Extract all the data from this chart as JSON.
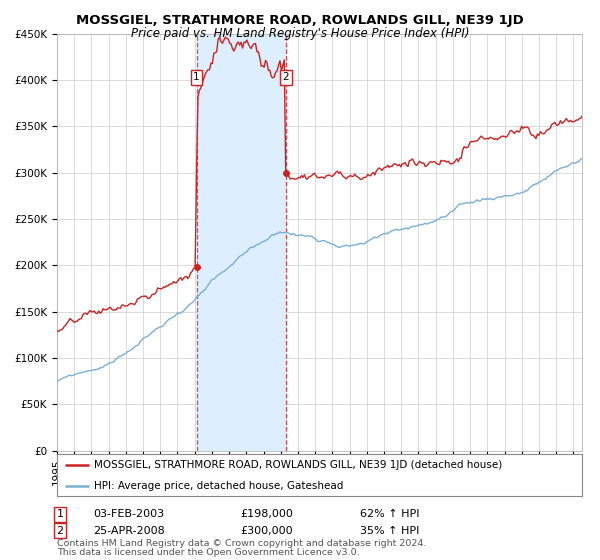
{
  "title": "MOSSGIEL, STRATHMORE ROAD, ROWLANDS GILL, NE39 1JD",
  "subtitle": "Price paid vs. HM Land Registry's House Price Index (HPI)",
  "ylim": [
    0,
    450000
  ],
  "yticks": [
    0,
    50000,
    100000,
    150000,
    200000,
    250000,
    300000,
    350000,
    400000,
    450000
  ],
  "ytick_labels": [
    "£0",
    "£50K",
    "£100K",
    "£150K",
    "£200K",
    "£250K",
    "£300K",
    "£350K",
    "£400K",
    "£450K"
  ],
  "hpi_color": "#7ab0d4",
  "price_color": "#cc2222",
  "bg_color": "#ffffff",
  "grid_color": "#cccccc",
  "sale1_year": 2003.08,
  "sale1_price": 198000,
  "sale2_year": 2008.3,
  "sale2_price": 300000,
  "shade_color": "#ddeeff",
  "legend_line1": "MOSSGIEL, STRATHMORE ROAD, ROWLANDS GILL, NE39 1JD (detached house)",
  "legend_line2": "HPI: Average price, detached house, Gateshead",
  "table_row1": [
    "1",
    "03-FEB-2003",
    "£198,000",
    "62% ↑ HPI"
  ],
  "table_row2": [
    "2",
    "25-APR-2008",
    "£300,000",
    "35% ↑ HPI"
  ],
  "footnote1": "Contains HM Land Registry data © Crown copyright and database right 2024.",
  "footnote2": "This data is licensed under the Open Government Licence v3.0.",
  "title_fontsize": 9.5,
  "subtitle_fontsize": 8.5,
  "tick_fontsize": 7.5,
  "legend_fontsize": 7.5,
  "table_fontsize": 8,
  "footnote_fontsize": 6.8
}
